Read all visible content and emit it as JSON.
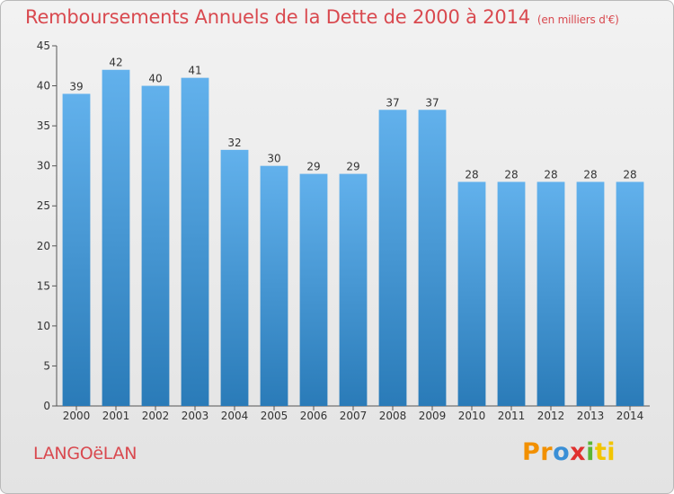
{
  "title": "Remboursements Annuels de la Dette de 2000 à 2014",
  "unit_label": "(en milliers d'€)",
  "commune": "LANGOëLAN",
  "logo": {
    "p1": "Pr",
    "p2": "o",
    "p3": "x",
    "p4": "i",
    "p5": "ti"
  },
  "colors": {
    "bar_light": "#62b1ec",
    "bar_dark": "#2a7bb8",
    "title": "#d9494f"
  },
  "chart_data": {
    "type": "bar",
    "categories": [
      "2000",
      "2001",
      "2002",
      "2003",
      "2004",
      "2005",
      "2006",
      "2007",
      "2008",
      "2009",
      "2010",
      "2011",
      "2012",
      "2013",
      "2014"
    ],
    "values": [
      39,
      42,
      40,
      41,
      32,
      30,
      29,
      29,
      37,
      37,
      28,
      28,
      28,
      28,
      28
    ],
    "ylim": [
      0,
      45
    ],
    "yticks": [
      0,
      5,
      10,
      15,
      20,
      25,
      30,
      35,
      40,
      45
    ],
    "grid": false,
    "title": "Remboursements Annuels de la Dette de 2000 à 2014",
    "xlabel": "",
    "ylabel": ""
  }
}
